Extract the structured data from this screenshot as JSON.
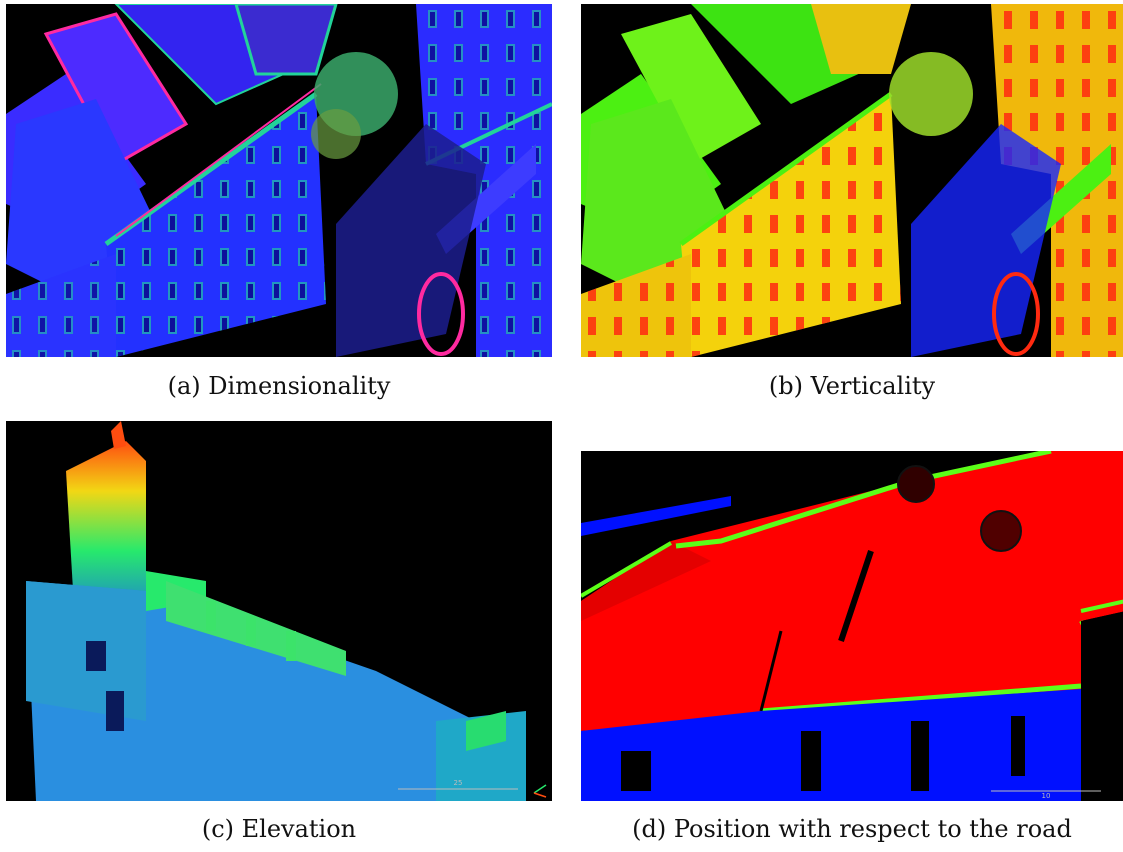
{
  "figure": {
    "panels": [
      {
        "caption": "(a) Dimensionality",
        "scene": "building façade point cloud colored by dimensionality",
        "palette": [
          "#1d2cff",
          "#6a20ff",
          "#22d39a",
          "#ff2aa0"
        ]
      },
      {
        "caption": "(b) Verticality",
        "scene": "building façade point cloud colored by verticality",
        "palette": [
          "#f4d20c",
          "#4cf012",
          "#ff2a10",
          "#1626ff"
        ]
      },
      {
        "caption": "(c) Elevation",
        "scene": "street point cloud colored by elevation",
        "palette": [
          "#1a55ff",
          "#27e96c",
          "#f2d714",
          "#ff4d10"
        ],
        "scale_label": "25"
      },
      {
        "caption": "(d) Position with respect to the road",
        "scene": "road point cloud colored by position relative to road",
        "palette": [
          "#ff0000",
          "#0010ff",
          "#5cff18"
        ],
        "scale_label": "10"
      }
    ]
  }
}
